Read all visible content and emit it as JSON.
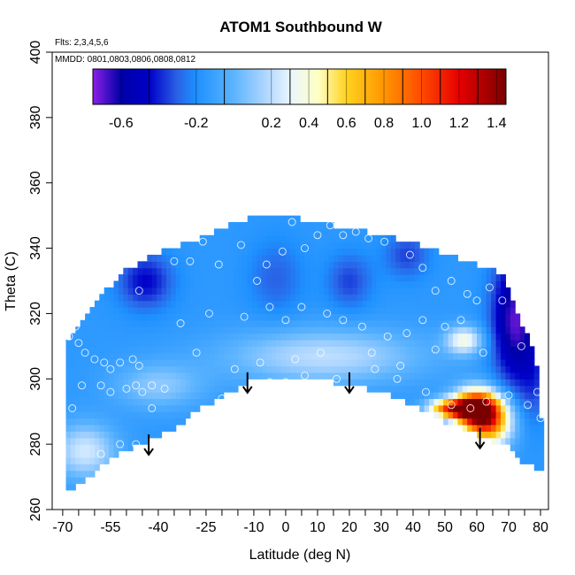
{
  "chart_data": {
    "type": "heatmap",
    "title": "ATOM1 Southbound W",
    "notes": {
      "flights": "Flts: 2,3,4,5,6",
      "dates": "MMDD: 0801,0803,0806,0808,0812"
    },
    "xlabel": "Latitude (deg N)",
    "ylabel": "Theta (C)",
    "xlim": [
      -70,
      80
    ],
    "ylim": [
      260,
      400
    ],
    "x_ticks": [
      -70,
      -55,
      -40,
      -25,
      -10,
      0,
      10,
      20,
      30,
      40,
      50,
      60,
      70,
      80
    ],
    "y_ticks": [
      260,
      280,
      300,
      320,
      340,
      360,
      380,
      400
    ],
    "colorbar": {
      "range": [
        -0.75,
        1.45
      ],
      "tick_values": [
        -0.6,
        -0.2,
        0.2,
        0.4,
        0.6,
        0.8,
        1.0,
        1.2,
        1.4
      ],
      "tick_labels": [
        "-0.6",
        "-0.2",
        "0.2",
        "0.4",
        "0.6",
        "0.8",
        "1.0",
        "1.2",
        "1.4"
      ],
      "divider_values": [
        -0.45,
        -0.05,
        0.3,
        0.5,
        0.7,
        0.9,
        1.1,
        1.3
      ],
      "stops": [
        {
          "v": -0.75,
          "c": "#8c1fe6"
        },
        {
          "v": -0.6,
          "c": "#0000a8"
        },
        {
          "v": -0.45,
          "c": "#0000c8"
        },
        {
          "v": -0.3,
          "c": "#2a62e6"
        },
        {
          "v": -0.2,
          "c": "#1e90ff"
        },
        {
          "v": 0.0,
          "c": "#5cb4ff"
        },
        {
          "v": 0.15,
          "c": "#a6d2ff"
        },
        {
          "v": 0.3,
          "c": "#e8f6ff"
        },
        {
          "v": 0.45,
          "c": "#ffffc4"
        },
        {
          "v": 0.6,
          "c": "#ffd21e"
        },
        {
          "v": 0.8,
          "c": "#ff9600"
        },
        {
          "v": 1.0,
          "c": "#ff4a00"
        },
        {
          "v": 1.2,
          "c": "#e60000"
        },
        {
          "v": 1.45,
          "c": "#7a0000"
        }
      ]
    },
    "domain": {
      "top": [
        [
          -69,
          312
        ],
        [
          -64,
          318
        ],
        [
          -52,
          332
        ],
        [
          -42,
          338
        ],
        [
          -30,
          342
        ],
        [
          -20,
          346
        ],
        [
          -10,
          350
        ],
        [
          0,
          350
        ],
        [
          10,
          348
        ],
        [
          20,
          346
        ],
        [
          30,
          344
        ],
        [
          40,
          342
        ],
        [
          50,
          338
        ],
        [
          60,
          335
        ],
        [
          68,
          332
        ],
        [
          72,
          322
        ],
        [
          78,
          308
        ],
        [
          80,
          298
        ],
        [
          80,
          287
        ]
      ],
      "bottom": [
        [
          -69,
          266
        ],
        [
          -64,
          268
        ],
        [
          -55,
          276
        ],
        [
          -45,
          280
        ],
        [
          -35,
          285
        ],
        [
          -25,
          292
        ],
        [
          -15,
          297
        ],
        [
          -10,
          300
        ],
        [
          0,
          300
        ],
        [
          10,
          300
        ],
        [
          20,
          298
        ],
        [
          30,
          296
        ],
        [
          40,
          292
        ],
        [
          50,
          287
        ],
        [
          60,
          283
        ],
        [
          70,
          279
        ],
        [
          75,
          274
        ],
        [
          80,
          272
        ]
      ]
    },
    "field_features": [
      {
        "lat": -44,
        "theta": 330,
        "w": -0.45,
        "sx": 6,
        "sy": 6
      },
      {
        "lat": -3,
        "theta": 331,
        "w": -0.3,
        "sx": 6,
        "sy": 8
      },
      {
        "lat": 20,
        "theta": 330,
        "w": -0.35,
        "sx": 5,
        "sy": 6
      },
      {
        "lat": 38,
        "theta": 338,
        "w": -0.35,
        "sx": 5,
        "sy": 5
      },
      {
        "lat": 72,
        "theta": 318,
        "w": -0.7,
        "sx": 5,
        "sy": 14
      },
      {
        "lat": 78,
        "theta": 300,
        "w": -0.3,
        "sx": 3,
        "sy": 10
      },
      {
        "lat": 12,
        "theta": 307,
        "w": 0.2,
        "sx": 22,
        "sy": 6
      },
      {
        "lat": -40,
        "theta": 298,
        "w": 0.1,
        "sx": 10,
        "sy": 5
      },
      {
        "lat": 60,
        "theta": 291,
        "w": 1.4,
        "sx": 5,
        "sy": 4
      },
      {
        "lat": 52,
        "theta": 291,
        "w": 0.9,
        "sx": 5,
        "sy": 2
      },
      {
        "lat": 64,
        "theta": 286,
        "w": 0.7,
        "sx": 5,
        "sy": 5
      },
      {
        "lat": 56,
        "theta": 312,
        "w": 0.35,
        "sx": 4,
        "sy": 3
      },
      {
        "lat": -63,
        "theta": 278,
        "w": 0.25,
        "sx": 7,
        "sy": 6
      }
    ],
    "field_base": -0.15,
    "observations": [
      [
        -68,
        313
      ],
      [
        -66,
        316
      ],
      [
        -65,
        311
      ],
      [
        -63,
        308
      ],
      [
        -60,
        306
      ],
      [
        -57,
        305
      ],
      [
        -55,
        303
      ],
      [
        -52,
        305
      ],
      [
        -48,
        306
      ],
      [
        -46,
        304
      ],
      [
        -64,
        298
      ],
      [
        -58,
        298
      ],
      [
        -55,
        296
      ],
      [
        -50,
        297
      ],
      [
        -47,
        298
      ],
      [
        -45,
        296
      ],
      [
        -42,
        298
      ],
      [
        -38,
        297
      ],
      [
        -42,
        291
      ],
      [
        -67,
        291
      ],
      [
        -58,
        277
      ],
      [
        -52,
        280
      ],
      [
        -47,
        280
      ],
      [
        -46,
        327
      ],
      [
        -47,
        338
      ],
      [
        -42,
        342
      ],
      [
        -35,
        336
      ],
      [
        -30,
        336
      ],
      [
        -26,
        342
      ],
      [
        -21,
        335
      ],
      [
        -14,
        341
      ],
      [
        -9,
        330
      ],
      [
        -6,
        335
      ],
      [
        -1,
        339
      ],
      [
        2,
        348
      ],
      [
        6,
        340
      ],
      [
        10,
        344
      ],
      [
        14,
        347
      ],
      [
        18,
        344
      ],
      [
        22,
        345
      ],
      [
        26,
        343
      ],
      [
        31,
        342
      ],
      [
        39,
        338
      ],
      [
        43,
        334
      ],
      [
        47,
        327
      ],
      [
        52,
        330
      ],
      [
        57,
        326
      ],
      [
        60,
        324
      ],
      [
        64,
        328
      ],
      [
        68,
        324
      ],
      [
        72,
        326
      ],
      [
        -33,
        317
      ],
      [
        -24,
        320
      ],
      [
        -13,
        319
      ],
      [
        -5,
        322
      ],
      [
        0,
        318
      ],
      [
        5,
        322
      ],
      [
        13,
        320
      ],
      [
        18,
        318
      ],
      [
        24,
        316
      ],
      [
        32,
        313
      ],
      [
        38,
        314
      ],
      [
        43,
        318
      ],
      [
        50,
        316
      ],
      [
        55,
        318
      ],
      [
        -28,
        308
      ],
      [
        -16,
        303
      ],
      [
        -8,
        305
      ],
      [
        3,
        306
      ],
      [
        11,
        308
      ],
      [
        -20,
        294
      ],
      [
        -5,
        299
      ],
      [
        0,
        299
      ],
      [
        6,
        301
      ],
      [
        16,
        300
      ],
      [
        28,
        303
      ],
      [
        35,
        300
      ],
      [
        44,
        296
      ],
      [
        52,
        292
      ],
      [
        58,
        291
      ],
      [
        63,
        293
      ],
      [
        70,
        295
      ],
      [
        76,
        292
      ],
      [
        80,
        288
      ],
      [
        79,
        296
      ],
      [
        74,
        310
      ],
      [
        62,
        308
      ],
      [
        47,
        309
      ],
      [
        36,
        304
      ],
      [
        27,
        308
      ]
    ],
    "arrows": [
      {
        "lat": -43,
        "theta": 283
      },
      {
        "lat": -12,
        "theta": 302
      },
      {
        "lat": 20,
        "theta": 302
      },
      {
        "lat": 61,
        "theta": 285
      }
    ]
  }
}
